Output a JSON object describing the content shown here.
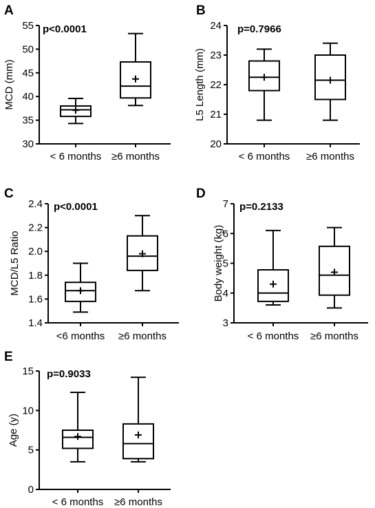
{
  "chart_data": [
    {
      "type": "box",
      "panel": "A",
      "ylabel": "MCD (mm)",
      "ylim": [
        30,
        55
      ],
      "yticks": [
        30,
        35,
        40,
        45,
        50,
        55
      ],
      "annotation": "p<0.0001",
      "categories": [
        "< 6 months",
        "≥6 months"
      ],
      "boxes": [
        {
          "min": 34.3,
          "q1": 35.8,
          "median": 37.2,
          "q3": 38.0,
          "max": 39.6,
          "mean": 37.1
        },
        {
          "min": 38.1,
          "q1": 39.7,
          "median": 42.2,
          "q3": 47.3,
          "max": 53.3,
          "mean": 43.7
        }
      ]
    },
    {
      "type": "box",
      "panel": "B",
      "ylabel": "L5 Length (mm)",
      "ylim": [
        20,
        24
      ],
      "yticks": [
        20,
        21,
        22,
        23,
        24
      ],
      "annotation": "p=0.7966",
      "categories": [
        "< 6 months",
        "≥6 months"
      ],
      "boxes": [
        {
          "min": 20.8,
          "q1": 21.8,
          "median": 22.25,
          "q3": 22.8,
          "max": 23.2,
          "mean": 22.25
        },
        {
          "min": 20.8,
          "q1": 21.5,
          "median": 22.15,
          "q3": 23.0,
          "max": 23.4,
          "mean": 22.15
        }
      ]
    },
    {
      "type": "box",
      "panel": "C",
      "ylabel": "MCD/L5 Ratio",
      "ylim": [
        1.4,
        2.4
      ],
      "yticks": [
        "1.4",
        "1.6",
        "1.8",
        "2.0",
        "2.2",
        "2.4"
      ],
      "annotation": "p<0.0001",
      "categories": [
        "<6 months",
        "≥6 months"
      ],
      "boxes": [
        {
          "min": 1.49,
          "q1": 1.58,
          "median": 1.67,
          "q3": 1.74,
          "max": 1.9,
          "mean": 1.67
        },
        {
          "min": 1.67,
          "q1": 1.84,
          "median": 1.96,
          "q3": 2.13,
          "max": 2.3,
          "mean": 1.98
        }
      ]
    },
    {
      "type": "box",
      "panel": "D",
      "ylabel": "Body weight (kg)",
      "ylim": [
        3,
        7
      ],
      "yticks": [
        3,
        4,
        5,
        6,
        7
      ],
      "annotation": "p=0.2133",
      "categories": [
        "< 6 months",
        "≥6 months"
      ],
      "boxes": [
        {
          "min": 3.6,
          "q1": 3.72,
          "median": 4.0,
          "q3": 4.78,
          "max": 6.1,
          "mean": 4.3
        },
        {
          "min": 3.5,
          "q1": 3.93,
          "median": 4.6,
          "q3": 5.57,
          "max": 6.2,
          "mean": 4.7
        }
      ]
    },
    {
      "type": "box",
      "panel": "E",
      "ylabel": "Age (y)",
      "ylim": [
        0,
        15
      ],
      "yticks": [
        0,
        5,
        10,
        15
      ],
      "annotation": "p=0.9033",
      "categories": [
        "< 6 months",
        "≥6 months"
      ],
      "boxes": [
        {
          "min": 3.5,
          "q1": 5.2,
          "median": 6.6,
          "q3": 7.5,
          "max": 12.3,
          "mean": 6.7
        },
        {
          "min": 3.5,
          "q1": 3.9,
          "median": 5.8,
          "q3": 8.3,
          "max": 14.2,
          "mean": 6.9
        }
      ]
    }
  ]
}
